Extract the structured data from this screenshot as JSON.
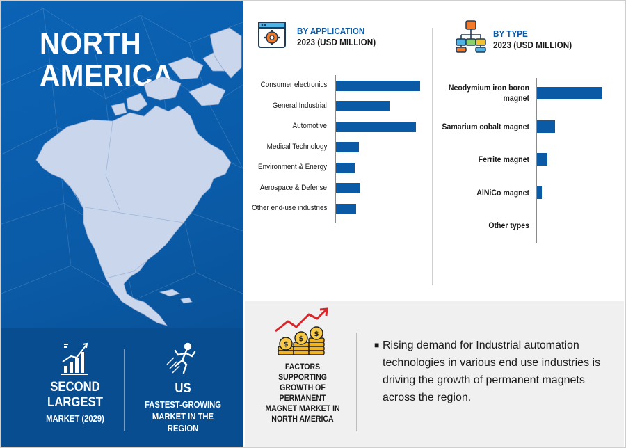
{
  "region": {
    "title_line1": "NORTH",
    "title_line2": "AMERICA"
  },
  "stats": {
    "second": {
      "big1": "SECOND",
      "big2": "LARGEST",
      "small": "MARKET (2029)"
    },
    "us": {
      "big": "US",
      "small1": "FASTEST-GROWING",
      "small2": "MARKET IN THE",
      "small3": "REGION"
    }
  },
  "colors": {
    "brand_blue": "#0a5aa6",
    "panel_dark": "#094d91",
    "bar": "#0a5aa6"
  },
  "icons": {
    "application": "gear-window-icon",
    "type": "hierarchy-icon",
    "market": "growth-bar-chart-icon",
    "fastest": "runner-icon",
    "factors": "coins-growth-icon"
  },
  "chart_data": [
    {
      "type": "bar",
      "orientation": "horizontal",
      "title_line1": "BY APPLICATION",
      "title_line2": "2023 (USD MILLION)",
      "categories": [
        "Consumer electronics",
        "General Industrial",
        "Automotive",
        "Medical Technology",
        "Environment & Energy",
        "Aerospace & Defense",
        "Other end-use industries"
      ],
      "values": [
        100,
        64,
        95,
        27,
        22,
        29,
        24
      ],
      "xlim": [
        0,
        100
      ],
      "grid": false
    },
    {
      "type": "bar",
      "orientation": "horizontal",
      "title_line1": "BY TYPE",
      "title_line2": "2023 (USD MILLION)",
      "categories": [
        "Neodymium iron boron magnet",
        "Samarium cobalt magnet",
        "Ferrite magnet",
        "AlNiCo magnet",
        "Other types"
      ],
      "values": [
        100,
        28,
        16,
        7,
        0
      ],
      "xlim": [
        0,
        100
      ],
      "grid": false
    }
  ],
  "factors": {
    "title": "FACTORS SUPPORTING GROWTH OF PERMANENT MAGNET MARKET IN NORTH AMERICA",
    "items": [
      "Rising demand for Industrial automation technologies in various end use industries is driving the growth of permanent magnets across the region."
    ]
  }
}
